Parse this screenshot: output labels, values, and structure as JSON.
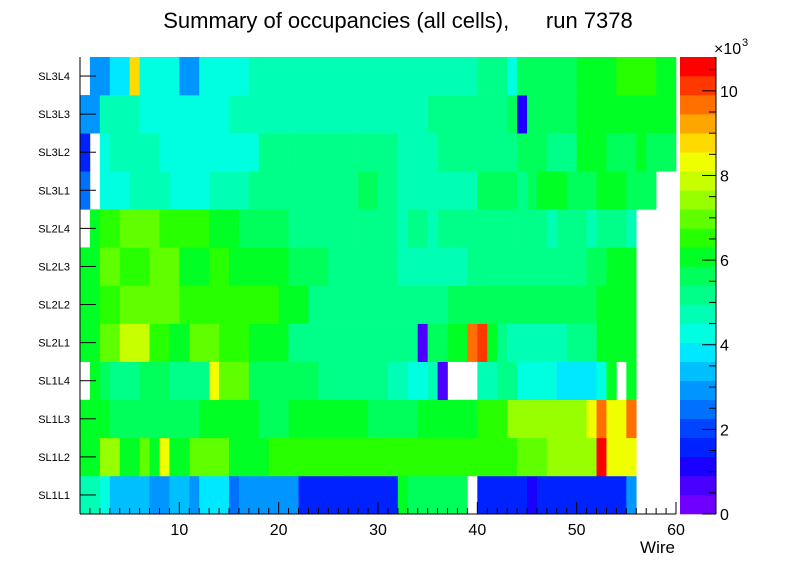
{
  "chart_data": {
    "type": "heatmap",
    "title": "Summary of occupancies (all cells),      run 7378",
    "xlabel": "Wire",
    "ylabel": "",
    "xlim": [
      0,
      60
    ],
    "x_ticks": [
      "10",
      "20",
      "30",
      "40",
      "50",
      "60"
    ],
    "y_categories": [
      "SL1L1",
      "SL1L2",
      "SL1L3",
      "SL1L4",
      "SL2L1",
      "SL2L2",
      "SL2L3",
      "SL2L4",
      "SL3L1",
      "SL3L2",
      "SL3L3",
      "SL3L4"
    ],
    "color_scale": {
      "min": 0,
      "max": 10800,
      "multiplier_label": "×10",
      "multiplier_exp": "3",
      "ticks": [
        "0",
        "2",
        "4",
        "6",
        "8",
        "10"
      ],
      "palette": [
        "#6f00ff",
        "#4a00ff",
        "#1a00ff",
        "#0022ff",
        "#0044ff",
        "#0070ff",
        "#0095ff",
        "#00bfff",
        "#00e8ff",
        "#00ffe0",
        "#00ffb4",
        "#00ff88",
        "#00ff5a",
        "#00ff24",
        "#28ff00",
        "#60ff00",
        "#98ff00",
        "#c8ff00",
        "#f0ff00",
        "#ffda00",
        "#ffa500",
        "#ff7000",
        "#ff3800",
        "#ff0000"
      ]
    },
    "rows": [
      {
        "label": "SL1L1",
        "segments": [
          [
            1,
            3,
            4500
          ],
          [
            3,
            4,
            4200
          ],
          [
            4,
            8,
            3200
          ],
          [
            8,
            10,
            2800
          ],
          [
            10,
            12,
            3200
          ],
          [
            12,
            13,
            2800
          ],
          [
            13,
            16,
            3800
          ],
          [
            16,
            17,
            2600
          ],
          [
            17,
            19,
            2900
          ],
          [
            19,
            23,
            2700
          ],
          [
            23,
            33,
            1500
          ],
          [
            33,
            34,
            6000
          ],
          [
            34,
            40,
            5800
          ],
          [
            40,
            41,
            0
          ],
          [
            41,
            46,
            1600
          ],
          [
            46,
            47,
            1000
          ],
          [
            47,
            56,
            1500
          ],
          [
            56,
            57,
            2800
          ]
        ]
      },
      {
        "label": "SL1L2",
        "segments": [
          [
            1,
            3,
            6200
          ],
          [
            3,
            5,
            7200
          ],
          [
            5,
            7,
            6000
          ],
          [
            7,
            8,
            6900
          ],
          [
            8,
            9,
            6000
          ],
          [
            9,
            10,
            8500
          ],
          [
            10,
            12,
            6200
          ],
          [
            12,
            16,
            6800
          ],
          [
            16,
            20,
            6000
          ],
          [
            20,
            23,
            6400
          ],
          [
            23,
            28,
            6500
          ],
          [
            28,
            33,
            6400
          ],
          [
            33,
            39,
            6700
          ],
          [
            39,
            41,
            6300
          ],
          [
            41,
            45,
            6700
          ],
          [
            45,
            48,
            7000
          ],
          [
            48,
            49,
            7200
          ],
          [
            49,
            53,
            7400
          ],
          [
            53,
            54,
            10500
          ],
          [
            54,
            57,
            8500
          ]
        ]
      },
      {
        "label": "SL1L3",
        "segments": [
          [
            1,
            4,
            6000
          ],
          [
            4,
            10,
            5800
          ],
          [
            10,
            13,
            5400
          ],
          [
            13,
            16,
            6000
          ],
          [
            16,
            19,
            6200
          ],
          [
            19,
            22,
            5800
          ],
          [
            22,
            30,
            6000
          ],
          [
            30,
            35,
            5800
          ],
          [
            35,
            41,
            6200
          ],
          [
            41,
            44,
            6600
          ],
          [
            44,
            49,
            7300
          ],
          [
            49,
            52,
            7500
          ],
          [
            52,
            53,
            8200
          ],
          [
            53,
            54,
            9800
          ],
          [
            54,
            56,
            8200
          ],
          [
            56,
            57,
            9800
          ]
        ]
      },
      {
        "label": "SL1L4",
        "segments": [
          [
            1,
            2,
            0
          ],
          [
            2,
            3,
            6000
          ],
          [
            3,
            4,
            5800
          ],
          [
            4,
            7,
            5000
          ],
          [
            7,
            10,
            5700
          ],
          [
            10,
            14,
            5100
          ],
          [
            14,
            15,
            8100
          ],
          [
            15,
            16,
            6800
          ],
          [
            16,
            18,
            7000
          ],
          [
            18,
            25,
            5400
          ],
          [
            25,
            32,
            5200
          ],
          [
            32,
            34,
            4700
          ],
          [
            34,
            36,
            4300
          ],
          [
            36,
            37,
            4700
          ],
          [
            37,
            38,
            700
          ],
          [
            38,
            41,
            0
          ],
          [
            41,
            43,
            4600
          ],
          [
            43,
            45,
            5000
          ],
          [
            45,
            49,
            4300
          ],
          [
            49,
            53,
            4000
          ],
          [
            53,
            54,
            4300
          ],
          [
            54,
            55,
            6000
          ],
          [
            55,
            56,
            0
          ],
          [
            56,
            57,
            6000
          ]
        ]
      },
      {
        "label": "SL2L1",
        "segments": [
          [
            1,
            3,
            6000
          ],
          [
            3,
            5,
            7000
          ],
          [
            5,
            8,
            7700
          ],
          [
            8,
            10,
            6700
          ],
          [
            10,
            12,
            6200
          ],
          [
            12,
            15,
            7000
          ],
          [
            15,
            18,
            6300
          ],
          [
            18,
            22,
            6000
          ],
          [
            22,
            33,
            5000
          ],
          [
            33,
            35,
            5200
          ],
          [
            35,
            36,
            600
          ],
          [
            36,
            38,
            5500
          ],
          [
            38,
            40,
            6000
          ],
          [
            40,
            41,
            9500
          ],
          [
            41,
            42,
            10000
          ],
          [
            42,
            43,
            6000
          ],
          [
            43,
            44,
            5300
          ],
          [
            44,
            50,
            4800
          ],
          [
            50,
            53,
            5000
          ],
          [
            53,
            57,
            5900
          ]
        ]
      },
      {
        "label": "SL2L2",
        "segments": [
          [
            1,
            3,
            6000
          ],
          [
            3,
            5,
            6600
          ],
          [
            5,
            8,
            7100
          ],
          [
            8,
            11,
            6800
          ],
          [
            11,
            14,
            6600
          ],
          [
            14,
            18,
            6300
          ],
          [
            18,
            21,
            6500
          ],
          [
            21,
            24,
            6000
          ],
          [
            24,
            33,
            5300
          ],
          [
            33,
            38,
            5200
          ],
          [
            38,
            43,
            5400
          ],
          [
            43,
            50,
            5600
          ],
          [
            50,
            53,
            5400
          ],
          [
            53,
            57,
            6000
          ]
        ]
      },
      {
        "label": "SL2L3",
        "segments": [
          [
            1,
            3,
            6000
          ],
          [
            3,
            5,
            6800
          ],
          [
            5,
            8,
            6500
          ],
          [
            8,
            11,
            6900
          ],
          [
            11,
            14,
            6200
          ],
          [
            14,
            16,
            6500
          ],
          [
            16,
            19,
            6200
          ],
          [
            19,
            22,
            6000
          ],
          [
            22,
            26,
            5500
          ],
          [
            26,
            33,
            5000
          ],
          [
            33,
            40,
            4900
          ],
          [
            40,
            46,
            5000
          ],
          [
            46,
            52,
            5200
          ],
          [
            52,
            54,
            5800
          ],
          [
            54,
            57,
            6000
          ]
        ]
      },
      {
        "label": "SL2L4",
        "segments": [
          [
            1,
            2,
            0
          ],
          [
            2,
            3,
            6000
          ],
          [
            3,
            5,
            6500
          ],
          [
            5,
            9,
            6800
          ],
          [
            9,
            14,
            6300
          ],
          [
            14,
            17,
            6000
          ],
          [
            17,
            22,
            5400
          ],
          [
            22,
            29,
            5100
          ],
          [
            29,
            33,
            5000
          ],
          [
            33,
            34,
            4500
          ],
          [
            34,
            36,
            5000
          ],
          [
            36,
            37,
            4500
          ],
          [
            37,
            45,
            5000
          ],
          [
            45,
            48,
            5100
          ],
          [
            48,
            49,
            4600
          ],
          [
            49,
            52,
            5000
          ],
          [
            52,
            53,
            4600
          ],
          [
            53,
            55,
            5000
          ],
          [
            55,
            56,
            5300
          ],
          [
            56,
            57,
            4600
          ]
        ]
      },
      {
        "label": "SL3L1",
        "segments": [
          [
            1,
            2,
            2500
          ],
          [
            2,
            3,
            0
          ],
          [
            3,
            6,
            4300
          ],
          [
            6,
            10,
            4500
          ],
          [
            10,
            14,
            4100
          ],
          [
            14,
            18,
            4600
          ],
          [
            18,
            23,
            5300
          ],
          [
            23,
            27,
            5300
          ],
          [
            27,
            29,
            5100
          ],
          [
            29,
            31,
            5400
          ],
          [
            31,
            33,
            5100
          ],
          [
            33,
            41,
            4900
          ],
          [
            41,
            45,
            5500
          ],
          [
            45,
            46,
            5000
          ],
          [
            46,
            47,
            5500
          ],
          [
            47,
            50,
            6000
          ],
          [
            50,
            53,
            5600
          ],
          [
            53,
            56,
            6200
          ],
          [
            56,
            59,
            5700
          ]
        ]
      },
      {
        "label": "SL3L2",
        "segments": [
          [
            1,
            2,
            1700
          ],
          [
            2,
            3,
            0
          ],
          [
            3,
            4,
            4100
          ],
          [
            4,
            9,
            4600
          ],
          [
            9,
            17,
            4100
          ],
          [
            17,
            19,
            4400
          ],
          [
            19,
            22,
            5100
          ],
          [
            22,
            25,
            5300
          ],
          [
            25,
            29,
            5000
          ],
          [
            29,
            31,
            5300
          ],
          [
            31,
            33,
            5000
          ],
          [
            33,
            37,
            4700
          ],
          [
            37,
            41,
            5000
          ],
          [
            41,
            45,
            5100
          ],
          [
            45,
            48,
            5600
          ],
          [
            48,
            51,
            5300
          ],
          [
            51,
            54,
            6000
          ],
          [
            54,
            57,
            5600
          ],
          [
            57,
            58,
            6000
          ],
          [
            58,
            61,
            5800
          ]
        ]
      },
      {
        "label": "SL3L3",
        "segments": [
          [
            1,
            3,
            2800
          ],
          [
            3,
            7,
            4700
          ],
          [
            7,
            16,
            4100
          ],
          [
            16,
            36,
            4800
          ],
          [
            36,
            40,
            5000
          ],
          [
            40,
            44,
            5200
          ],
          [
            44,
            45,
            5500
          ],
          [
            45,
            46,
            1200
          ],
          [
            46,
            51,
            5800
          ],
          [
            51,
            55,
            6000
          ],
          [
            55,
            61,
            6200
          ]
        ]
      },
      {
        "label": "SL3L4",
        "segments": [
          [
            1,
            2,
            0
          ],
          [
            2,
            4,
            2700
          ],
          [
            4,
            6,
            4000
          ],
          [
            6,
            7,
            8800
          ],
          [
            7,
            11,
            4100
          ],
          [
            11,
            13,
            3000
          ],
          [
            13,
            18,
            4100
          ],
          [
            18,
            41,
            4800
          ],
          [
            41,
            44,
            5200
          ],
          [
            44,
            45,
            4300
          ],
          [
            45,
            47,
            5600
          ],
          [
            47,
            51,
            5800
          ],
          [
            51,
            55,
            6000
          ],
          [
            55,
            59,
            6500
          ],
          [
            59,
            61,
            5900
          ]
        ]
      }
    ]
  }
}
